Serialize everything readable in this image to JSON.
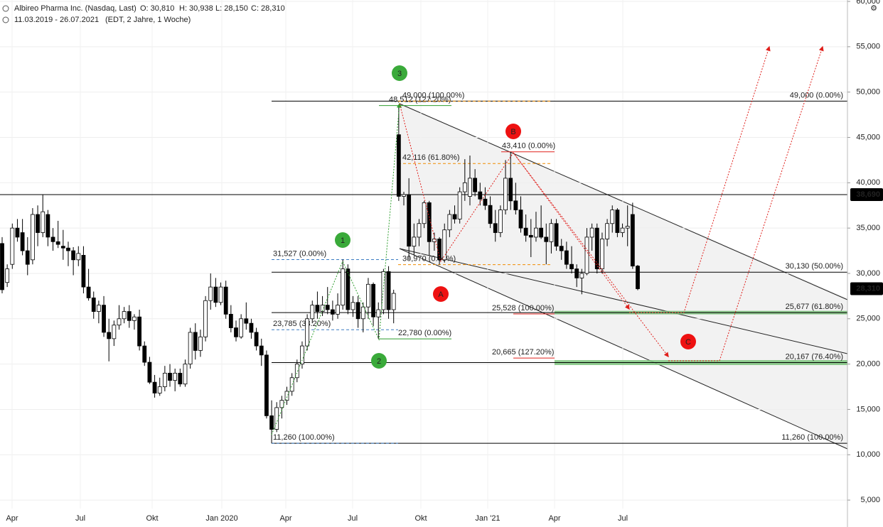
{
  "header": {
    "name": "Albireo Pharma Inc. (Nasdaq, Last)",
    "open": "O: 30,810",
    "high": "H: 30,938",
    "low": "L: 28,150",
    "close": "C: 28,310",
    "range": "11.03.2019 - 26.07.2021",
    "info": "(EDT, 2 Jahre, 1 Woche)"
  },
  "chart_data": {
    "type": "candlestick",
    "ohlc": [
      [
        33300,
        34000,
        27800,
        28200
      ],
      [
        29000,
        31000,
        28500,
        30500
      ],
      [
        31000,
        35500,
        30500,
        35000
      ],
      [
        35000,
        36000,
        33500,
        34000
      ],
      [
        34500,
        36000,
        32000,
        32500
      ],
      [
        32500,
        34000,
        29800,
        31000
      ],
      [
        31500,
        37200,
        31000,
        36500
      ],
      [
        36500,
        37500,
        33000,
        34500
      ],
      [
        34500,
        38700,
        34000,
        36800
      ],
      [
        36500,
        37000,
        33000,
        34000
      ],
      [
        34000,
        35000,
        32500,
        33500
      ],
      [
        33500,
        35800,
        32800,
        33200
      ],
      [
        33000,
        34800,
        31500,
        32800
      ],
      [
        32800,
        33500,
        30800,
        32500
      ],
      [
        32500,
        32900,
        29800,
        31500
      ],
      [
        31500,
        33000,
        30800,
        32200
      ],
      [
        32000,
        33000,
        27800,
        28500
      ],
      [
        28500,
        30500,
        27000,
        27300
      ],
      [
        27300,
        28000,
        25000,
        25800
      ],
      [
        25800,
        27000,
        24500,
        26500
      ],
      [
        26500,
        27500,
        23000,
        23500
      ],
      [
        23500,
        25000,
        20300,
        22800
      ],
      [
        22800,
        24800,
        22000,
        24300
      ],
      [
        24300,
        26500,
        23800,
        25000
      ],
      [
        25000,
        26300,
        24500,
        25800
      ],
      [
        25800,
        26500,
        24000,
        24800
      ],
      [
        24800,
        25500,
        23800,
        25200
      ],
      [
        25200,
        26000,
        21500,
        22000
      ],
      [
        22000,
        22500,
        19800,
        20200
      ],
      [
        20200,
        20800,
        17800,
        18000
      ],
      [
        18000,
        18800,
        16300,
        16800
      ],
      [
        16800,
        18500,
        16500,
        17500
      ],
      [
        17500,
        19800,
        17000,
        19000
      ],
      [
        19000,
        20000,
        17500,
        18200
      ],
      [
        18200,
        19500,
        17000,
        19000
      ],
      [
        19000,
        19500,
        17500,
        17800
      ],
      [
        17800,
        20500,
        17500,
        20000
      ],
      [
        20000,
        24000,
        19500,
        23500
      ],
      [
        23500,
        24500,
        20500,
        21500
      ],
      [
        21500,
        23800,
        20800,
        23000
      ],
      [
        23000,
        27500,
        22500,
        27000
      ],
      [
        27000,
        30000,
        26000,
        28500
      ],
      [
        28500,
        29500,
        26300,
        26800
      ],
      [
        26800,
        29000,
        26500,
        28500
      ],
      [
        28500,
        29200,
        25000,
        25500
      ],
      [
        25500,
        26500,
        23500,
        24000
      ],
      [
        24000,
        24800,
        22500,
        23000
      ],
      [
        23000,
        25500,
        22800,
        25000
      ],
      [
        25000,
        26800,
        23800,
        24500
      ],
      [
        24500,
        25000,
        22800,
        23500
      ],
      [
        23500,
        24000,
        21500,
        22000
      ],
      [
        22000,
        22800,
        19800,
        21000
      ],
      [
        21000,
        21500,
        14000,
        14300
      ],
      [
        14300,
        16000,
        11260,
        12800
      ],
      [
        12800,
        15800,
        12500,
        15200
      ],
      [
        15200,
        16500,
        14000,
        16000
      ],
      [
        16000,
        17500,
        15500,
        17000
      ],
      [
        17000,
        19000,
        16500,
        18500
      ],
      [
        18500,
        20500,
        18000,
        20000
      ],
      [
        20000,
        22500,
        19500,
        22000
      ],
      [
        22000,
        25500,
        21500,
        25000
      ],
      [
        25000,
        27000,
        24500,
        26500
      ],
      [
        26500,
        28000,
        25000,
        25800
      ],
      [
        25800,
        27500,
        25300,
        26500
      ],
      [
        26500,
        28500,
        25500,
        26000
      ],
      [
        26000,
        27000,
        24800,
        25500
      ],
      [
        25500,
        27800,
        25000,
        26500
      ],
      [
        26500,
        31527,
        26000,
        30500
      ],
      [
        30500,
        31000,
        25500,
        26000
      ],
      [
        26000,
        27500,
        25200,
        26800
      ],
      [
        26800,
        27500,
        24000,
        25000
      ],
      [
        25000,
        26800,
        23500,
        26300
      ],
      [
        26300,
        29500,
        25000,
        28800
      ],
      [
        28800,
        29000,
        24200,
        25200
      ],
      [
        25200,
        26800,
        22780,
        26000
      ],
      [
        26000,
        30500,
        25500,
        30200
      ],
      [
        30200,
        30800,
        25000,
        26000
      ],
      [
        26000,
        28200,
        24500,
        27800
      ],
      [
        45300,
        48512,
        38000,
        38500
      ],
      [
        38500,
        39000,
        37500,
        38700
      ],
      [
        38700,
        40500,
        31500,
        33000
      ],
      [
        33000,
        35500,
        32000,
        34000
      ],
      [
        34000,
        36000,
        33000,
        35500
      ],
      [
        35500,
        38000,
        35000,
        37800
      ],
      [
        37800,
        38000,
        32000,
        33500
      ],
      [
        33500,
        34500,
        32500,
        33800
      ],
      [
        33800,
        34000,
        30970,
        31500
      ],
      [
        31500,
        35500,
        31200,
        34800
      ],
      [
        34800,
        37000,
        34000,
        36500
      ],
      [
        36500,
        37500,
        35500,
        36000
      ],
      [
        36000,
        39500,
        35500,
        39000
      ],
      [
        39000,
        42600,
        38000,
        40000
      ],
      [
        38500,
        43000,
        37500,
        40500
      ],
      [
        40500,
        41500,
        38500,
        39000
      ],
      [
        39000,
        40000,
        37500,
        38200
      ],
      [
        38200,
        39500,
        37000,
        37500
      ],
      [
        37500,
        38500,
        35000,
        35500
      ],
      [
        35500,
        37000,
        33500,
        34500
      ],
      [
        34500,
        37500,
        34000,
        37000
      ],
      [
        37000,
        42500,
        36500,
        40500
      ],
      [
        40500,
        43410,
        37000,
        38000
      ],
      [
        38000,
        40000,
        36500,
        37000
      ],
      [
        37000,
        38500,
        34500,
        35000
      ],
      [
        35000,
        36500,
        33500,
        34200
      ],
      [
        34200,
        36000,
        31800,
        34000
      ],
      [
        34000,
        36800,
        33500,
        35000
      ],
      [
        35000,
        37500,
        33800,
        34000
      ],
      [
        34000,
        35500,
        31000,
        33500
      ],
      [
        33500,
        36000,
        32200,
        35500
      ],
      [
        35500,
        36000,
        32500,
        33000
      ],
      [
        33000,
        33800,
        31500,
        32500
      ],
      [
        32500,
        33500,
        30500,
        31000
      ],
      [
        31000,
        33000,
        30000,
        30500
      ],
      [
        30500,
        31000,
        28500,
        29500
      ],
      [
        29500,
        30500,
        27700,
        30000
      ],
      [
        30000,
        35000,
        29800,
        34000
      ],
      [
        34000,
        35500,
        32500,
        35000
      ],
      [
        35000,
        35500,
        30000,
        30500
      ],
      [
        30500,
        34500,
        30000,
        33800
      ],
      [
        33800,
        36000,
        33000,
        35500
      ],
      [
        35500,
        37500,
        34500,
        37000
      ],
      [
        37000,
        37200,
        34000,
        34500
      ],
      [
        34500,
        35500,
        34000,
        35000
      ],
      [
        35000,
        37500,
        33000,
        35200
      ],
      [
        36500,
        37800,
        30500,
        30810
      ],
      [
        30810,
        30938,
        28150,
        28310
      ]
    ],
    "ylim": [
      2031,
      60156
    ],
    "yticks": [
      {
        "value": 5000,
        "label": "5,000"
      },
      {
        "value": 10000,
        "label": "10,000"
      },
      {
        "value": 15000,
        "label": "15,000"
      },
      {
        "value": 20000,
        "label": "20,000"
      },
      {
        "value": 25000,
        "label": "25,000"
      },
      {
        "value": 30000,
        "label": "30,000"
      },
      {
        "value": 35000,
        "label": "35,000"
      },
      {
        "value": 40000,
        "label": "40,000"
      },
      {
        "value": 45000,
        "label": "45,000"
      },
      {
        "value": 50000,
        "label": "50,000"
      },
      {
        "value": 55000,
        "label": "55,000"
      },
      {
        "value": 60000,
        "label": "60,000"
      }
    ],
    "xtick_labels": [
      "Apr",
      "Jul",
      "Okt",
      "Jan 2020",
      "Apr",
      "Jul",
      "Okt",
      "Jan '21",
      "Apr",
      "Jul"
    ],
    "grid": true,
    "levels": [
      {
        "value": 49000,
        "label": "49,000 (0.00%)",
        "color": "#000000"
      },
      {
        "value": 30130,
        "label": "30,130 (50.00%)",
        "color": "#000000"
      },
      {
        "value": 25677,
        "label": "25,677 (61.80%)",
        "color": "#000000"
      },
      {
        "value": 20167,
        "label": "20,167 (76.40%)",
        "color": "#000000"
      },
      {
        "value": 11260,
        "label": "11,260 (100.00%)",
        "color": "#000000"
      },
      {
        "value": 31527,
        "label": "31,527 (0.00%)",
        "color": "#3a7cc3"
      },
      {
        "value": 23785,
        "label": "23,785 (38.20%)",
        "color": "#3a7cc3"
      },
      {
        "value": 11260,
        "label": "11,260 (100.00%)",
        "color": "#3a7cc3"
      },
      {
        "value": 48512,
        "label": "48,512 (127.20%)",
        "color": "#2e9e2e"
      },
      {
        "value": 22780,
        "label": "22,780 (0.00%)",
        "color": "#2e9e2e"
      },
      {
        "value": 49000,
        "label": "49,000 (100.00%)",
        "color": "#f08c00"
      },
      {
        "value": 42116,
        "label": "42,116 (61.80%)",
        "color": "#f08c00"
      },
      {
        "value": 30970,
        "label": "30,970 (0.00%)",
        "color": "#f08c00"
      },
      {
        "value": 43410,
        "label": "43,410 (0.00%)",
        "color": "#e0201c"
      },
      {
        "value": 25528,
        "label": "25,528 (100.00%)",
        "color": "#e0201c"
      },
      {
        "value": 20665,
        "label": "20,665 (127.20%)",
        "color": "#e0201c"
      }
    ],
    "price_boxes": [
      {
        "value": 38690,
        "label": "38,690"
      },
      {
        "value": 28310,
        "label": "28,310"
      }
    ],
    "wave_labels": [
      {
        "label": "1",
        "color": "#3aaa3a"
      },
      {
        "label": "2",
        "color": "#3aaa3a"
      },
      {
        "label": "3",
        "color": "#3aaa3a"
      },
      {
        "label": "A",
        "color": "#ee1111"
      },
      {
        "label": "B",
        "color": "#ee1111"
      },
      {
        "label": "C",
        "color": "#ee1111"
      }
    ]
  }
}
